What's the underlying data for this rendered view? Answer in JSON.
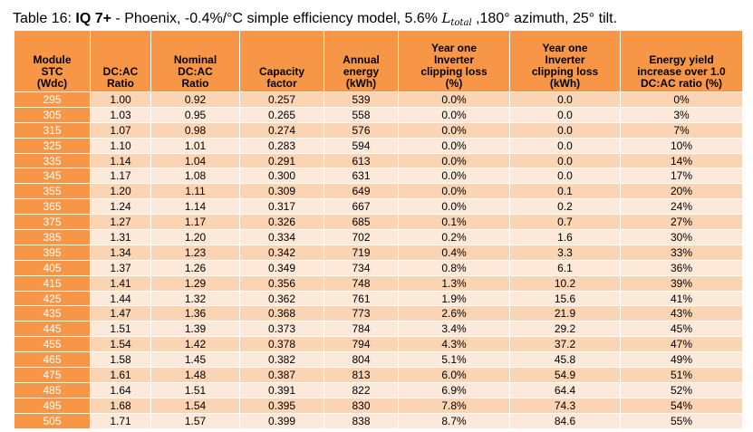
{
  "caption": {
    "prefix": "Table 16: ",
    "bold": "IQ 7+",
    "text_before_math": " - Phoenix, -0.4%/°C simple efficiency model, 5.6% ",
    "math_var": "L",
    "math_sub": "total",
    "text_after_math": " ,180° azimuth, 25° tilt."
  },
  "table": {
    "headers": [
      [
        "Module",
        "STC",
        "(Wdc)"
      ],
      [
        "DC:AC",
        "Ratio"
      ],
      [
        "Nominal",
        "DC:AC",
        "Ratio"
      ],
      [
        "Capacity",
        "factor"
      ],
      [
        "Annual",
        "energy",
        "(kWh)"
      ],
      [
        "Year one",
        "Inverter",
        "clipping loss",
        "(%)"
      ],
      [
        "Year one",
        "Inverter",
        "clipping loss",
        "(kWh)"
      ],
      [
        "Energy yield",
        "increase over 1.0",
        "DC:AC ratio (%)"
      ]
    ],
    "rows": [
      [
        "295",
        "1.00",
        "0.92",
        "0.257",
        "539",
        "0.0%",
        "0.0",
        "0%"
      ],
      [
        "305",
        "1.03",
        "0.95",
        "0.265",
        "558",
        "0.0%",
        "0.0",
        "3%"
      ],
      [
        "315",
        "1.07",
        "0.98",
        "0.274",
        "576",
        "0.0%",
        "0.0",
        "7%"
      ],
      [
        "325",
        "1.10",
        "1.01",
        "0.283",
        "594",
        "0.0%",
        "0.0",
        "10%"
      ],
      [
        "335",
        "1.14",
        "1.04",
        "0.291",
        "613",
        "0.0%",
        "0.0",
        "14%"
      ],
      [
        "345",
        "1.17",
        "1.08",
        "0.300",
        "631",
        "0.0%",
        "0.0",
        "17%"
      ],
      [
        "355",
        "1.20",
        "1.11",
        "0.309",
        "649",
        "0.0%",
        "0.1",
        "20%"
      ],
      [
        "365",
        "1.24",
        "1.14",
        "0.317",
        "667",
        "0.0%",
        "0.2",
        "24%"
      ],
      [
        "375",
        "1.27",
        "1.17",
        "0.326",
        "685",
        "0.1%",
        "0.7",
        "27%"
      ],
      [
        "385",
        "1.31",
        "1.20",
        "0.334",
        "702",
        "0.2%",
        "1.6",
        "30%"
      ],
      [
        "395",
        "1.34",
        "1.23",
        "0.342",
        "719",
        "0.4%",
        "3.3",
        "33%"
      ],
      [
        "405",
        "1.37",
        "1.26",
        "0.349",
        "734",
        "0.8%",
        "6.1",
        "36%"
      ],
      [
        "415",
        "1.41",
        "1.29",
        "0.356",
        "748",
        "1.3%",
        "10.2",
        "39%"
      ],
      [
        "425",
        "1.44",
        "1.32",
        "0.362",
        "761",
        "1.9%",
        "15.6",
        "41%"
      ],
      [
        "435",
        "1.47",
        "1.36",
        "0.368",
        "773",
        "2.6%",
        "21.9",
        "43%"
      ],
      [
        "445",
        "1.51",
        "1.39",
        "0.373",
        "784",
        "3.4%",
        "29.2",
        "45%"
      ],
      [
        "455",
        "1.54",
        "1.42",
        "0.378",
        "794",
        "4.3%",
        "37.2",
        "47%"
      ],
      [
        "465",
        "1.58",
        "1.45",
        "0.382",
        "804",
        "5.1%",
        "45.8",
        "49%"
      ],
      [
        "475",
        "1.61",
        "1.48",
        "0.387",
        "813",
        "6.0%",
        "54.9",
        "51%"
      ],
      [
        "485",
        "1.64",
        "1.51",
        "0.391",
        "822",
        "6.9%",
        "64.4",
        "52%"
      ],
      [
        "495",
        "1.68",
        "1.54",
        "0.395",
        "830",
        "7.8%",
        "74.3",
        "54%"
      ],
      [
        "505",
        "1.71",
        "1.57",
        "0.399",
        "838",
        "8.7%",
        "84.6",
        "55%"
      ]
    ]
  },
  "colors": {
    "header_bg": "#f79646",
    "row_odd_bg": "#fbd4b4",
    "row_even_bg": "#fde9d9",
    "first_col_text": "#ffffff"
  }
}
